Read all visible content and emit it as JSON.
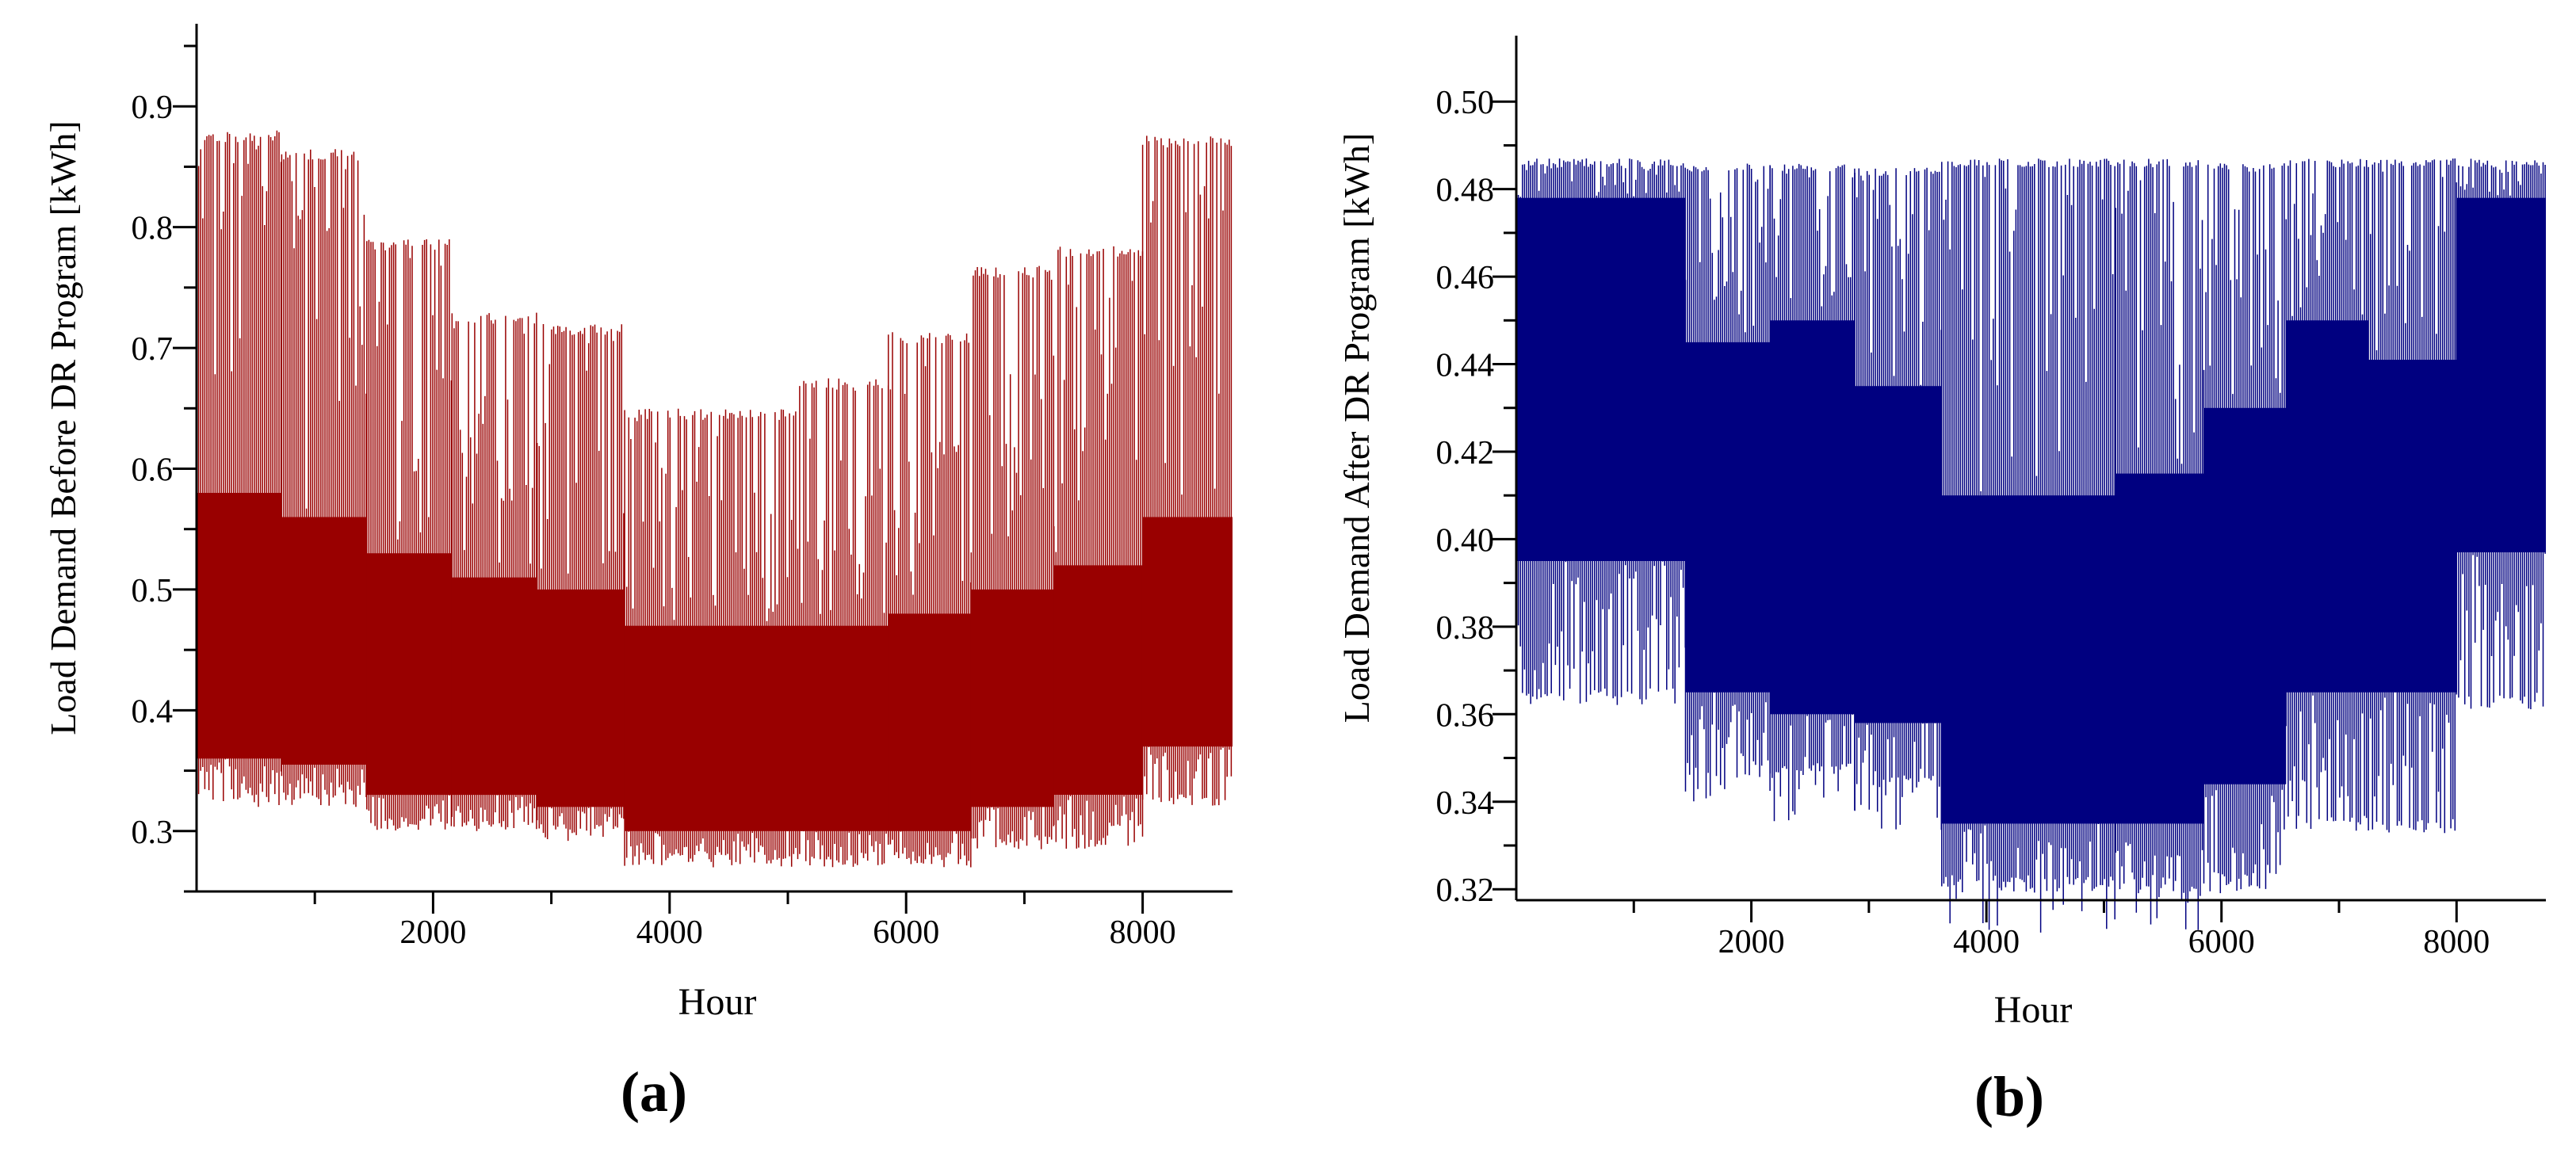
{
  "panels": [
    {
      "label": "(a)",
      "chart_data": {
        "type": "bar",
        "title": "",
        "xlabel": "Hour",
        "ylabel": "Load Demand Before DR Program [kWh]",
        "xlim": [
          0,
          8760
        ],
        "ylim": [
          0.25,
          0.95
        ],
        "xticks": [
          2000,
          4000,
          6000,
          8000
        ],
        "xtick_labels": [
          "2000",
          "4000",
          "6000",
          "8000"
        ],
        "yticks": [
          0.3,
          0.4,
          0.5,
          0.6,
          0.7,
          0.8,
          0.9
        ],
        "ytick_labels": [
          "0.3",
          "0.4",
          "0.5",
          "0.6",
          "0.7",
          "0.8",
          "0.9"
        ],
        "color": "#990000",
        "grid": false,
        "legend": "none",
        "segments": [
          {
            "x": [
              0,
              720
            ],
            "peak_max": 0.88,
            "peak": 0.79,
            "band_top": 0.58,
            "base": 0.36,
            "floor": 0.32
          },
          {
            "x": [
              720,
              1440
            ],
            "peak_max": 0.865,
            "peak": 0.78,
            "band_top": 0.56,
            "base": 0.355,
            "floor": 0.32
          },
          {
            "x": [
              1440,
              2160
            ],
            "peak_max": 0.79,
            "peak": 0.67,
            "band_top": 0.53,
            "base": 0.33,
            "floor": 0.3
          },
          {
            "x": [
              2160,
              2880
            ],
            "peak_max": 0.73,
            "peak": 0.61,
            "band_top": 0.51,
            "base": 0.33,
            "floor": 0.3
          },
          {
            "x": [
              2880,
              3620
            ],
            "peak_max": 0.72,
            "peak": 0.58,
            "band_top": 0.5,
            "base": 0.32,
            "floor": 0.295
          },
          {
            "x": [
              3620,
              5100
            ],
            "peak_max": 0.65,
            "peak": 0.52,
            "band_top": 0.47,
            "base": 0.3,
            "floor": 0.27
          },
          {
            "x": [
              5100,
              5850
            ],
            "peak_max": 0.675,
            "peak": 0.53,
            "band_top": 0.47,
            "base": 0.3,
            "floor": 0.27
          },
          {
            "x": [
              5850,
              6550
            ],
            "peak_max": 0.713,
            "peak": 0.56,
            "band_top": 0.48,
            "base": 0.3,
            "floor": 0.27
          },
          {
            "x": [
              6550,
              7250
            ],
            "peak_max": 0.768,
            "peak": 0.6,
            "band_top": 0.5,
            "base": 0.32,
            "floor": 0.285
          },
          {
            "x": [
              7250,
              8000
            ],
            "peak_max": 0.785,
            "peak": 0.63,
            "band_top": 0.52,
            "base": 0.33,
            "floor": 0.285
          },
          {
            "x": [
              8000,
              8760
            ],
            "peak_max": 0.876,
            "peak": 0.76,
            "band_top": 0.56,
            "base": 0.37,
            "floor": 0.32
          }
        ]
      }
    },
    {
      "label": "(b)",
      "chart_data": {
        "type": "bar",
        "title": "",
        "xlabel": "Hour",
        "ylabel": "Load Demand After DR Program [kWh]",
        "xlim": [
          0,
          8760
        ],
        "ylim": [
          0.3175,
          0.51
        ],
        "xticks": [
          2000,
          4000,
          6000,
          8000
        ],
        "xtick_labels": [
          "2000",
          "4000",
          "6000",
          "8000"
        ],
        "yticks": [
          0.32,
          0.34,
          0.36,
          0.38,
          0.4,
          0.42,
          0.44,
          0.46,
          0.48,
          0.5
        ],
        "ytick_labels": [
          "0.32",
          "0.34",
          "0.36",
          "0.38",
          "0.40",
          "0.42",
          "0.44",
          "0.46",
          "0.48",
          "0.50"
        ],
        "color": "#000080",
        "grid": false,
        "legend": "none",
        "segments": [
          {
            "x": [
              0,
              1440
            ],
            "peak_max": 0.487,
            "peak": 0.478,
            "band_bottom": 0.395,
            "floor": 0.362
          },
          {
            "x": [
              1440,
              2160
            ],
            "peak_max": 0.486,
            "peak": 0.445,
            "band_bottom": 0.365,
            "floor": 0.345
          },
          {
            "x": [
              2160,
              2880
            ],
            "peak_max": 0.486,
            "peak": 0.45,
            "band_bottom": 0.36,
            "floor": 0.345
          },
          {
            "x": [
              2880,
              3620
            ],
            "peak_max": 0.485,
            "peak": 0.435,
            "band_bottom": 0.358,
            "floor": 0.343
          },
          {
            "x": [
              3620,
              5100
            ],
            "peak_max": 0.487,
            "peak": 0.41,
            "band_bottom": 0.335,
            "floor": 0.319
          },
          {
            "x": [
              5100,
              5850
            ],
            "peak_max": 0.487,
            "peak": 0.415,
            "band_bottom": 0.335,
            "floor": 0.319
          },
          {
            "x": [
              5850,
              6550
            ],
            "peak_max": 0.486,
            "peak": 0.43,
            "band_bottom": 0.344,
            "floor": 0.32
          },
          {
            "x": [
              6550,
              7250
            ],
            "peak_max": 0.487,
            "peak": 0.45,
            "band_bottom": 0.365,
            "floor": 0.333
          },
          {
            "x": [
              7250,
              8000
            ],
            "peak_max": 0.487,
            "peak": 0.441,
            "band_bottom": 0.365,
            "floor": 0.332
          },
          {
            "x": [
              8000,
              8760
            ],
            "peak_max": 0.487,
            "peak": 0.478,
            "band_bottom": 0.397,
            "floor": 0.361
          }
        ]
      }
    }
  ]
}
